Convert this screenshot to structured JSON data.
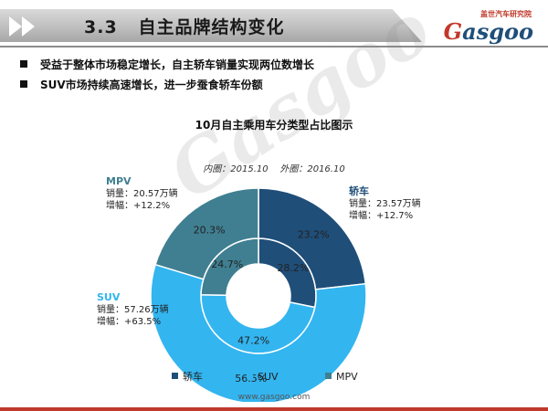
{
  "header": {
    "section_number": "3.3",
    "section_title": "自主品牌结构变化",
    "logo_sub": "盖世汽车研究院",
    "logo_main": "Gasgoo"
  },
  "bullets": [
    "受益于整体市场稳定增长，自主轿车销量实现两位数增长",
    "SUV市场持续高速增长，进一步蚕食轿车份额"
  ],
  "colors": {
    "sedan": "#1f4e79",
    "suv": "#33b5f0",
    "mpv": "#3f7f91",
    "header_band": "#bfbfbf",
    "accent_red": "#c0392b"
  },
  "chart_data": {
    "type": "donut",
    "title": "10月自主乘用车分类型占比图示",
    "subtitle": "内圈：2015.10    外圈：2016.10",
    "categories": [
      "轿车",
      "SUV",
      "MPV"
    ],
    "series": [
      {
        "name": "内圈：2015.10",
        "values": [
          28.2,
          47.2,
          24.7
        ]
      },
      {
        "name": "外圈：2016.10",
        "values": [
          23.2,
          56.5,
          20.3
        ]
      }
    ],
    "slice_labels": {
      "inner": [
        "28.2%",
        "47.2%",
        "24.7%"
      ],
      "outer": [
        "23.2%",
        "56.5%",
        "20.3%"
      ]
    },
    "legend": {
      "position": "bottom",
      "items": [
        "轿车",
        "SUV",
        "MPV"
      ]
    },
    "annotations": [
      {
        "category": "轿车",
        "lines": [
          "轿车",
          "销量：23.57万辆",
          "增幅：+12.7%"
        ]
      },
      {
        "category": "MPV",
        "lines": [
          "MPV",
          "销量：20.57万辆",
          "增幅：+12.2%"
        ]
      },
      {
        "category": "SUV",
        "lines": [
          "SUV",
          "销量：57.26万辆",
          "增幅：+63.5%"
        ]
      }
    ]
  },
  "footer": {
    "url": "www.gasgoo.com"
  },
  "watermark": "Gasgoo"
}
